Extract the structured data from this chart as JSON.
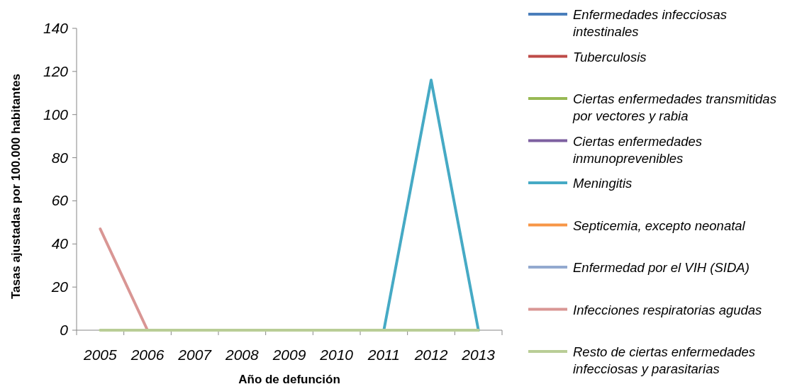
{
  "chart_data": {
    "type": "line",
    "xlabel": "Año de defunción",
    "ylabel": "Tasas ajustadas por 100.000 habitantes",
    "categories": [
      "2005",
      "2006",
      "2007",
      "2008",
      "2009",
      "2010",
      "2011",
      "2012",
      "2013"
    ],
    "ylim": [
      0,
      140
    ],
    "yticks": [
      0,
      20,
      40,
      60,
      80,
      100,
      120,
      140
    ],
    "grid": false,
    "legend": "right",
    "marker": "none",
    "line_style": "solid",
    "series": [
      {
        "name": "Enfermedades infecciosas intestinales",
        "color": "#4a7ebb",
        "values": [
          null,
          null,
          null,
          null,
          null,
          null,
          null,
          null,
          null
        ]
      },
      {
        "name": "Tuberculosis",
        "color": "#be4b48",
        "values": [
          null,
          null,
          null,
          null,
          null,
          null,
          null,
          null,
          null
        ]
      },
      {
        "name": "Ciertas enfermedades transmitidas por vectores y rabia",
        "color": "#98b954",
        "values": [
          null,
          null,
          null,
          null,
          null,
          null,
          null,
          null,
          null
        ]
      },
      {
        "name": "Ciertas enfermedades inmunoprevenibles",
        "color": "#7d60a0",
        "values": [
          null,
          null,
          null,
          null,
          null,
          null,
          null,
          null,
          null
        ]
      },
      {
        "name": "Meningitis",
        "color": "#46aac5",
        "values": [
          null,
          null,
          null,
          null,
          null,
          null,
          0,
          116,
          0
        ]
      },
      {
        "name": "Septicemia, excepto neonatal",
        "color": "#f79646",
        "values": [
          null,
          null,
          null,
          null,
          null,
          null,
          null,
          null,
          null
        ]
      },
      {
        "name": "Enfermedad por el VIH (SIDA)",
        "color": "#93a9cf",
        "values": [
          null,
          null,
          null,
          null,
          null,
          null,
          null,
          null,
          null
        ]
      },
      {
        "name": "Infecciones respiratorias agudas",
        "color": "#d99694",
        "values": [
          47,
          0,
          null,
          null,
          null,
          null,
          null,
          null,
          null
        ]
      },
      {
        "name": "Resto de ciertas enfermedades infecciosas y parasitarias",
        "color": "#b9cd96",
        "values": [
          0,
          0,
          0,
          0,
          0,
          0,
          0,
          0,
          0
        ]
      }
    ]
  }
}
